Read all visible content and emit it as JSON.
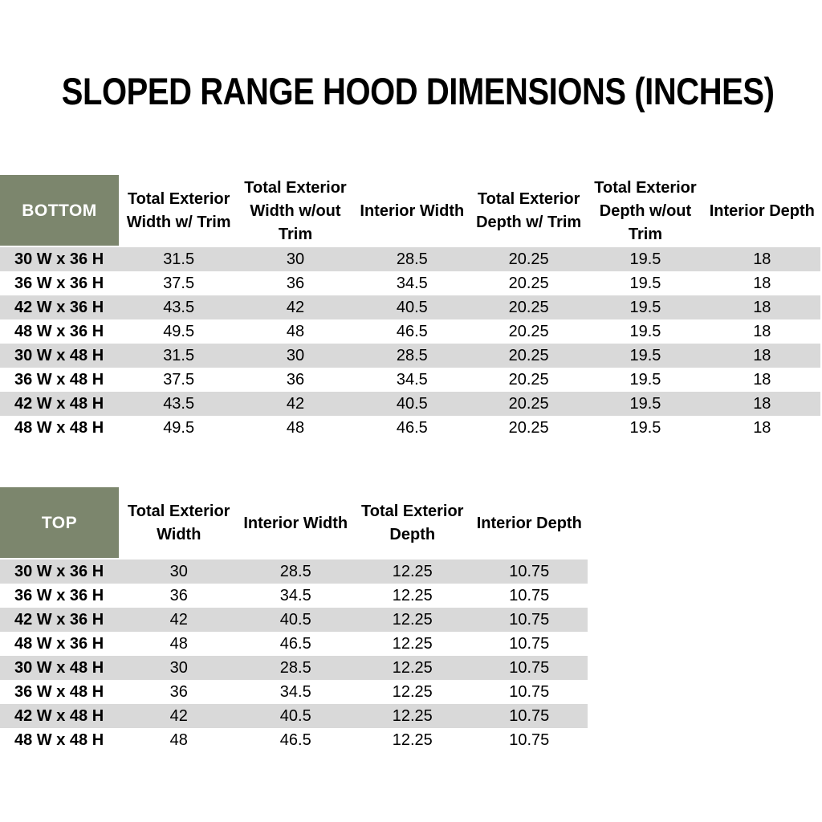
{
  "page": {
    "title": "SLOPED RANGE HOOD DIMENSIONS (INCHES)"
  },
  "colors": {
    "header_green": "#7c866d",
    "stripe_gray": "#d9d9d9",
    "text": "#000000",
    "corner_text": "#ffffff",
    "background": "#ffffff"
  },
  "bottom_table": {
    "corner_label": "BOTTOM",
    "columns": [
      "Total Exterior Width w/ Trim",
      "Total Exterior Width w/out Trim",
      "Interior Width",
      "Total Exterior Depth w/ Trim",
      "Total Exterior Depth w/out Trim",
      "Interior Depth"
    ],
    "rows": [
      {
        "label": "30 W x 36 H",
        "values": [
          "31.5",
          "30",
          "28.5",
          "20.25",
          "19.5",
          "18"
        ]
      },
      {
        "label": "36 W x 36 H",
        "values": [
          "37.5",
          "36",
          "34.5",
          "20.25",
          "19.5",
          "18"
        ]
      },
      {
        "label": "42 W x 36 H",
        "values": [
          "43.5",
          "42",
          "40.5",
          "20.25",
          "19.5",
          "18"
        ]
      },
      {
        "label": "48 W x 36 H",
        "values": [
          "49.5",
          "48",
          "46.5",
          "20.25",
          "19.5",
          "18"
        ]
      },
      {
        "label": "30 W x 48 H",
        "values": [
          "31.5",
          "30",
          "28.5",
          "20.25",
          "19.5",
          "18"
        ]
      },
      {
        "label": "36 W x 48 H",
        "values": [
          "37.5",
          "36",
          "34.5",
          "20.25",
          "19.5",
          "18"
        ]
      },
      {
        "label": "42 W x 48 H",
        "values": [
          "43.5",
          "42",
          "40.5",
          "20.25",
          "19.5",
          "18"
        ]
      },
      {
        "label": "48 W x 48 H",
        "values": [
          "49.5",
          "48",
          "46.5",
          "20.25",
          "19.5",
          "18"
        ]
      }
    ]
  },
  "top_table": {
    "corner_label": "TOP",
    "columns": [
      "Total Exterior Width",
      "Interior Width",
      "Total Exterior Depth",
      "Interior Depth"
    ],
    "rows": [
      {
        "label": "30 W x 36 H",
        "values": [
          "30",
          "28.5",
          "12.25",
          "10.75"
        ]
      },
      {
        "label": "36 W x 36 H",
        "values": [
          "36",
          "34.5",
          "12.25",
          "10.75"
        ]
      },
      {
        "label": "42 W x 36 H",
        "values": [
          "42",
          "40.5",
          "12.25",
          "10.75"
        ]
      },
      {
        "label": "48 W x 36 H",
        "values": [
          "48",
          "46.5",
          "12.25",
          "10.75"
        ]
      },
      {
        "label": "30 W x 48 H",
        "values": [
          "30",
          "28.5",
          "12.25",
          "10.75"
        ]
      },
      {
        "label": "36 W x 48 H",
        "values": [
          "36",
          "34.5",
          "12.25",
          "10.75"
        ]
      },
      {
        "label": "42 W x 48 H",
        "values": [
          "42",
          "40.5",
          "12.25",
          "10.75"
        ]
      },
      {
        "label": "48 W x 48 H",
        "values": [
          "48",
          "46.5",
          "12.25",
          "10.75"
        ]
      }
    ]
  }
}
